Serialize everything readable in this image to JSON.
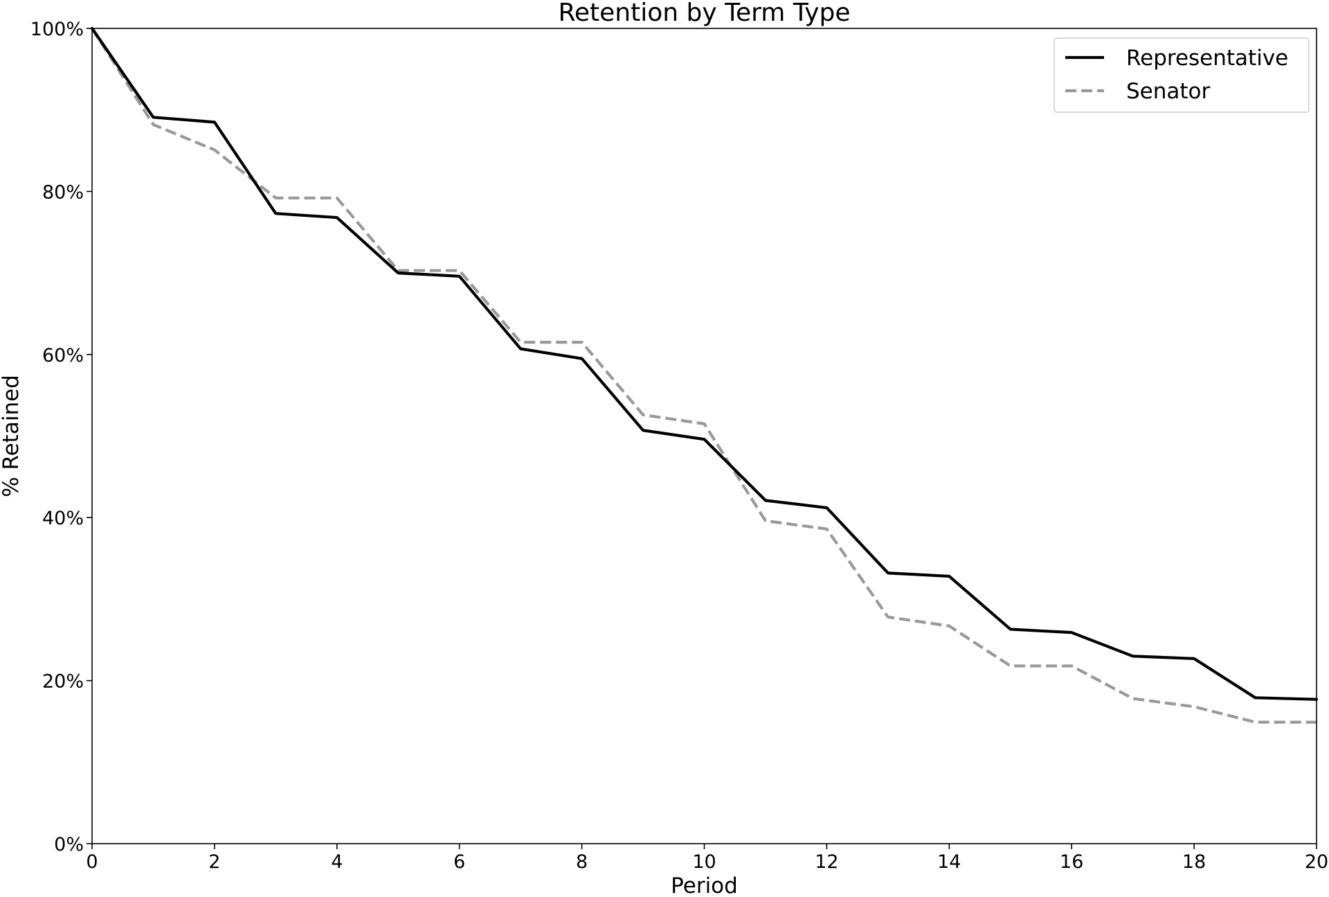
{
  "chart_data": {
    "type": "line",
    "title": "Retention by Term Type",
    "xlabel": "Period",
    "ylabel": "% Retained",
    "xlim": [
      0,
      20
    ],
    "ylim": [
      0,
      1
    ],
    "x_ticks": [
      0,
      2,
      4,
      6,
      8,
      10,
      12,
      14,
      16,
      18,
      20
    ],
    "y_ticks": [
      0,
      0.2,
      0.4,
      0.6,
      0.8,
      1.0
    ],
    "y_tick_labels": [
      "0%",
      "20%",
      "40%",
      "60%",
      "80%",
      "100%"
    ],
    "grid": false,
    "legend_position": "top-right",
    "x": [
      0,
      1,
      2,
      3,
      4,
      5,
      6,
      7,
      8,
      9,
      10,
      11,
      12,
      13,
      14,
      15,
      16,
      17,
      18,
      19,
      20
    ],
    "series": [
      {
        "name": "Representative",
        "color": "#000000",
        "style": "solid",
        "values": [
          1.0,
          0.891,
          0.885,
          0.773,
          0.768,
          0.7,
          0.696,
          0.607,
          0.595,
          0.507,
          0.496,
          0.421,
          0.412,
          0.332,
          0.328,
          0.263,
          0.259,
          0.23,
          0.227,
          0.179,
          0.177
        ]
      },
      {
        "name": "Senator",
        "color": "#999999",
        "style": "dashed",
        "values": [
          1.0,
          0.882,
          0.851,
          0.792,
          0.792,
          0.703,
          0.703,
          0.615,
          0.615,
          0.526,
          0.515,
          0.396,
          0.386,
          0.278,
          0.267,
          0.218,
          0.218,
          0.178,
          0.168,
          0.149,
          0.149
        ]
      }
    ]
  }
}
